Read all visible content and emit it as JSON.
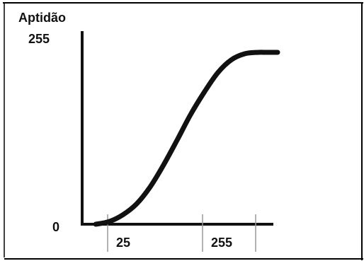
{
  "chart_data": {
    "type": "line",
    "ylabel": "Aptidão",
    "xlabel": "",
    "title": "",
    "y_tick_labels": [
      "0",
      "255"
    ],
    "x_tick_labels": [
      "25",
      "255"
    ],
    "x_ticks": [
      25,
      255
    ],
    "xlim": [
      0,
      360
    ],
    "ylim": [
      0,
      255
    ],
    "series": [
      {
        "x": [
          25,
          50,
          75,
          100,
          125,
          150,
          175,
          200,
          225,
          250,
          275,
          300,
          325,
          335,
          360
        ],
        "y": [
          0,
          4,
          14,
          30,
          55,
          88,
          125,
          163,
          196,
          225,
          244,
          253,
          255,
          255,
          255
        ]
      }
    ],
    "grid": false,
    "legend": "none"
  },
  "colors": {
    "curve": "#111111",
    "axis": "#111111",
    "tick_line": "#999999",
    "frame": "#000000"
  }
}
